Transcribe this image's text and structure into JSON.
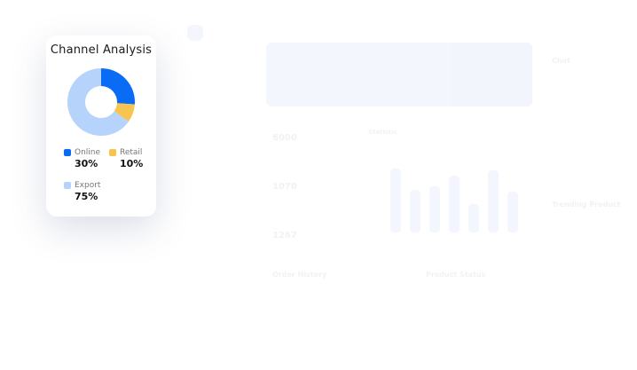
{
  "background": {
    "statistic_title": "Statistic",
    "chat_title": "Chat",
    "trending_title": "Trending Product",
    "order_history_title": "Order History",
    "product_status_title": "Product Status",
    "stats": [
      "6000",
      "1070",
      "1267"
    ]
  },
  "card": {
    "title": "Channel Analysis",
    "legend": [
      {
        "label": "Online",
        "value": "30%",
        "color": "#0a6cf5"
      },
      {
        "label": "Retail",
        "value": "10%",
        "color": "#f7c44f"
      },
      {
        "label": "Export",
        "value": "75%",
        "color": "#b5d3fb"
      }
    ]
  },
  "chart_data": {
    "type": "pie",
    "title": "Channel Analysis",
    "categories": [
      "Online",
      "Retail",
      "Export"
    ],
    "values": [
      30,
      10,
      75
    ],
    "colors": [
      "#0a6cf5",
      "#f7c44f",
      "#b5d3fb"
    ],
    "donut": true,
    "legend": "bottom"
  }
}
